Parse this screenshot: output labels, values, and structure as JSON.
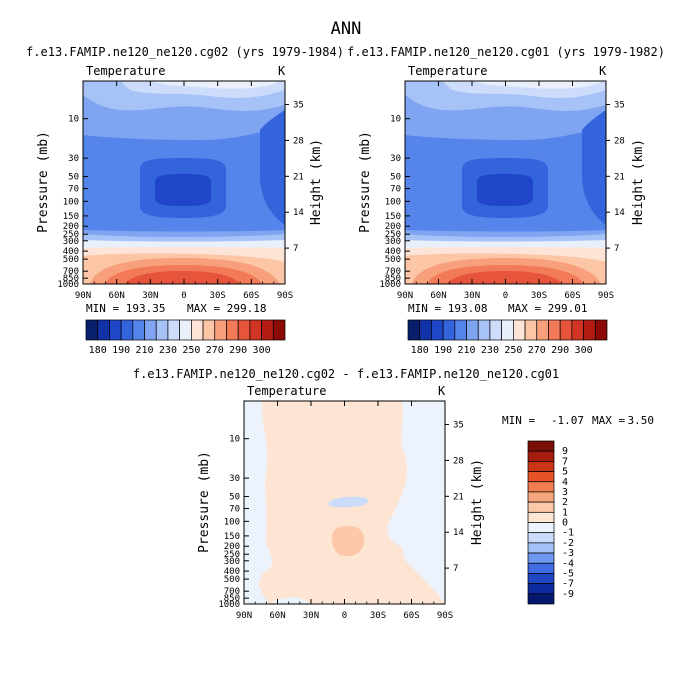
{
  "figure_title": "ANN",
  "chart_data": [
    {
      "type": "heatmap",
      "title": "f.e13.FAMIP.ne120_ne120.cg02 (yrs 1979-1984)",
      "variable": "Temperature",
      "units": "K",
      "xlabel": "",
      "ylabel": "Pressure (mb)",
      "ylabel_right": "Height (km)",
      "x_ticks": [
        "90N",
        "60N",
        "30N",
        "0",
        "30S",
        "60S",
        "90S"
      ],
      "y_ticks": [
        "10",
        "30",
        "50",
        "70",
        "100",
        "150",
        "200",
        "250",
        "300",
        "400",
        "500",
        "700",
        "850",
        "1000"
      ],
      "y_ticks_right": [
        "35",
        "28",
        "21",
        "14",
        "7"
      ],
      "min_label": "MIN = 193.35",
      "max_label": "MAX = 299.18",
      "min": 193.35,
      "max": 299.18,
      "colorbar_labels": [
        "180",
        "190",
        "210",
        "230",
        "250",
        "270",
        "290",
        "300"
      ]
    },
    {
      "type": "heatmap",
      "title": "f.e13.FAMIP.ne120_ne120.cg01 (yrs 1979-1982)",
      "variable": "Temperature",
      "units": "K",
      "xlabel": "",
      "ylabel": "Pressure (mb)",
      "ylabel_right": "Height (km)",
      "x_ticks": [
        "90N",
        "60N",
        "30N",
        "0",
        "30S",
        "60S",
        "90S"
      ],
      "y_ticks": [
        "10",
        "30",
        "50",
        "70",
        "100",
        "150",
        "200",
        "250",
        "300",
        "400",
        "500",
        "700",
        "850",
        "1000"
      ],
      "y_ticks_right": [
        "35",
        "28",
        "21",
        "14",
        "7"
      ],
      "min_label": "MIN = 193.08",
      "max_label": "MAX = 299.01",
      "min": 193.08,
      "max": 299.01,
      "colorbar_labels": [
        "180",
        "190",
        "210",
        "230",
        "250",
        "270",
        "290",
        "300"
      ]
    },
    {
      "type": "heatmap",
      "title": "f.e13.FAMIP.ne120_ne120.cg02 - f.e13.FAMIP.ne120_ne120.cg01",
      "variable": "Temperature",
      "units": "K",
      "xlabel": "",
      "ylabel": "Pressure (mb)",
      "ylabel_right": "Height (km)",
      "x_ticks": [
        "90N",
        "60N",
        "30N",
        "0",
        "30S",
        "60S",
        "90S"
      ],
      "y_ticks": [
        "10",
        "30",
        "50",
        "70",
        "100",
        "150",
        "200",
        "250",
        "300",
        "400",
        "500",
        "700",
        "850",
        "1000"
      ],
      "y_ticks_right": [
        "35",
        "28",
        "21",
        "14",
        "7"
      ],
      "min_label": "MIN =",
      "min_value": "-1.07",
      "max_label": "MAX =",
      "max_value": "3.50",
      "min": -1.07,
      "max": 3.5,
      "colorbar_labels": [
        "9",
        "7",
        "5",
        "4",
        "3",
        "2",
        "1",
        "0",
        "-1",
        "-2",
        "-3",
        "-4",
        "-5",
        "-7",
        "-9"
      ]
    }
  ],
  "palette_abs": [
    "#08206b",
    "#1232a8",
    "#1f46c9",
    "#3464dc",
    "#5584ea",
    "#7ea4f2",
    "#a6c2f7",
    "#cddcfa",
    "#e9f0fc",
    "#fde4d6",
    "#fbc5a6",
    "#f8a07c",
    "#f27a59",
    "#e6543c",
    "#d03424",
    "#b31c12",
    "#8c0a05"
  ],
  "palette_diff": [
    "#7a0f05",
    "#a51d0e",
    "#cc3417",
    "#e75324",
    "#f27d4e",
    "#f7a57c",
    "#fbc8a9",
    "#fde4d3",
    "#ecf3fd",
    "#cbdcfa",
    "#a3c0f7",
    "#6f98f0",
    "#3f6be3",
    "#2046c4",
    "#0d2a9e",
    "#05176e"
  ]
}
